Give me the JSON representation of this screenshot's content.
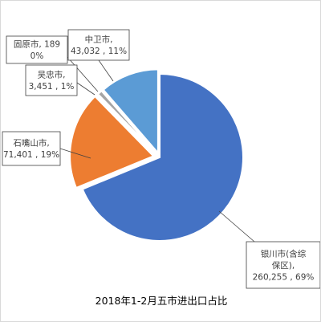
{
  "chart_data": {
    "type": "pie",
    "title": "2018年1-2月五市进出口占比",
    "slices": [
      {
        "key": "yinchuan",
        "label_lines": [
          "银川市(含综",
          "保区),",
          "260,255 , 69%"
        ],
        "value": 260255,
        "percent": 69,
        "color": "#4472C4"
      },
      {
        "key": "shizuishan",
        "label_lines": [
          "石嘴山市,",
          "71,401 , 19%"
        ],
        "value": 71401,
        "percent": 19,
        "color": "#ED7D31"
      },
      {
        "key": "wuzhong",
        "label_lines": [
          "吴忠市,",
          "3,451 , 1%"
        ],
        "value": 3451,
        "percent": 1,
        "color": "#A5A5A5"
      },
      {
        "key": "guyuan",
        "label_lines": [
          "固原市, 189",
          "0%"
        ],
        "value": 189,
        "percent": 0,
        "color": "#FFC000"
      },
      {
        "key": "zhongwei",
        "label_lines": [
          "中卫市,",
          "43,032 , 11%"
        ],
        "value": 43032,
        "percent": 11,
        "color": "#5B9BD5"
      }
    ],
    "legend": "none",
    "grid": false
  }
}
